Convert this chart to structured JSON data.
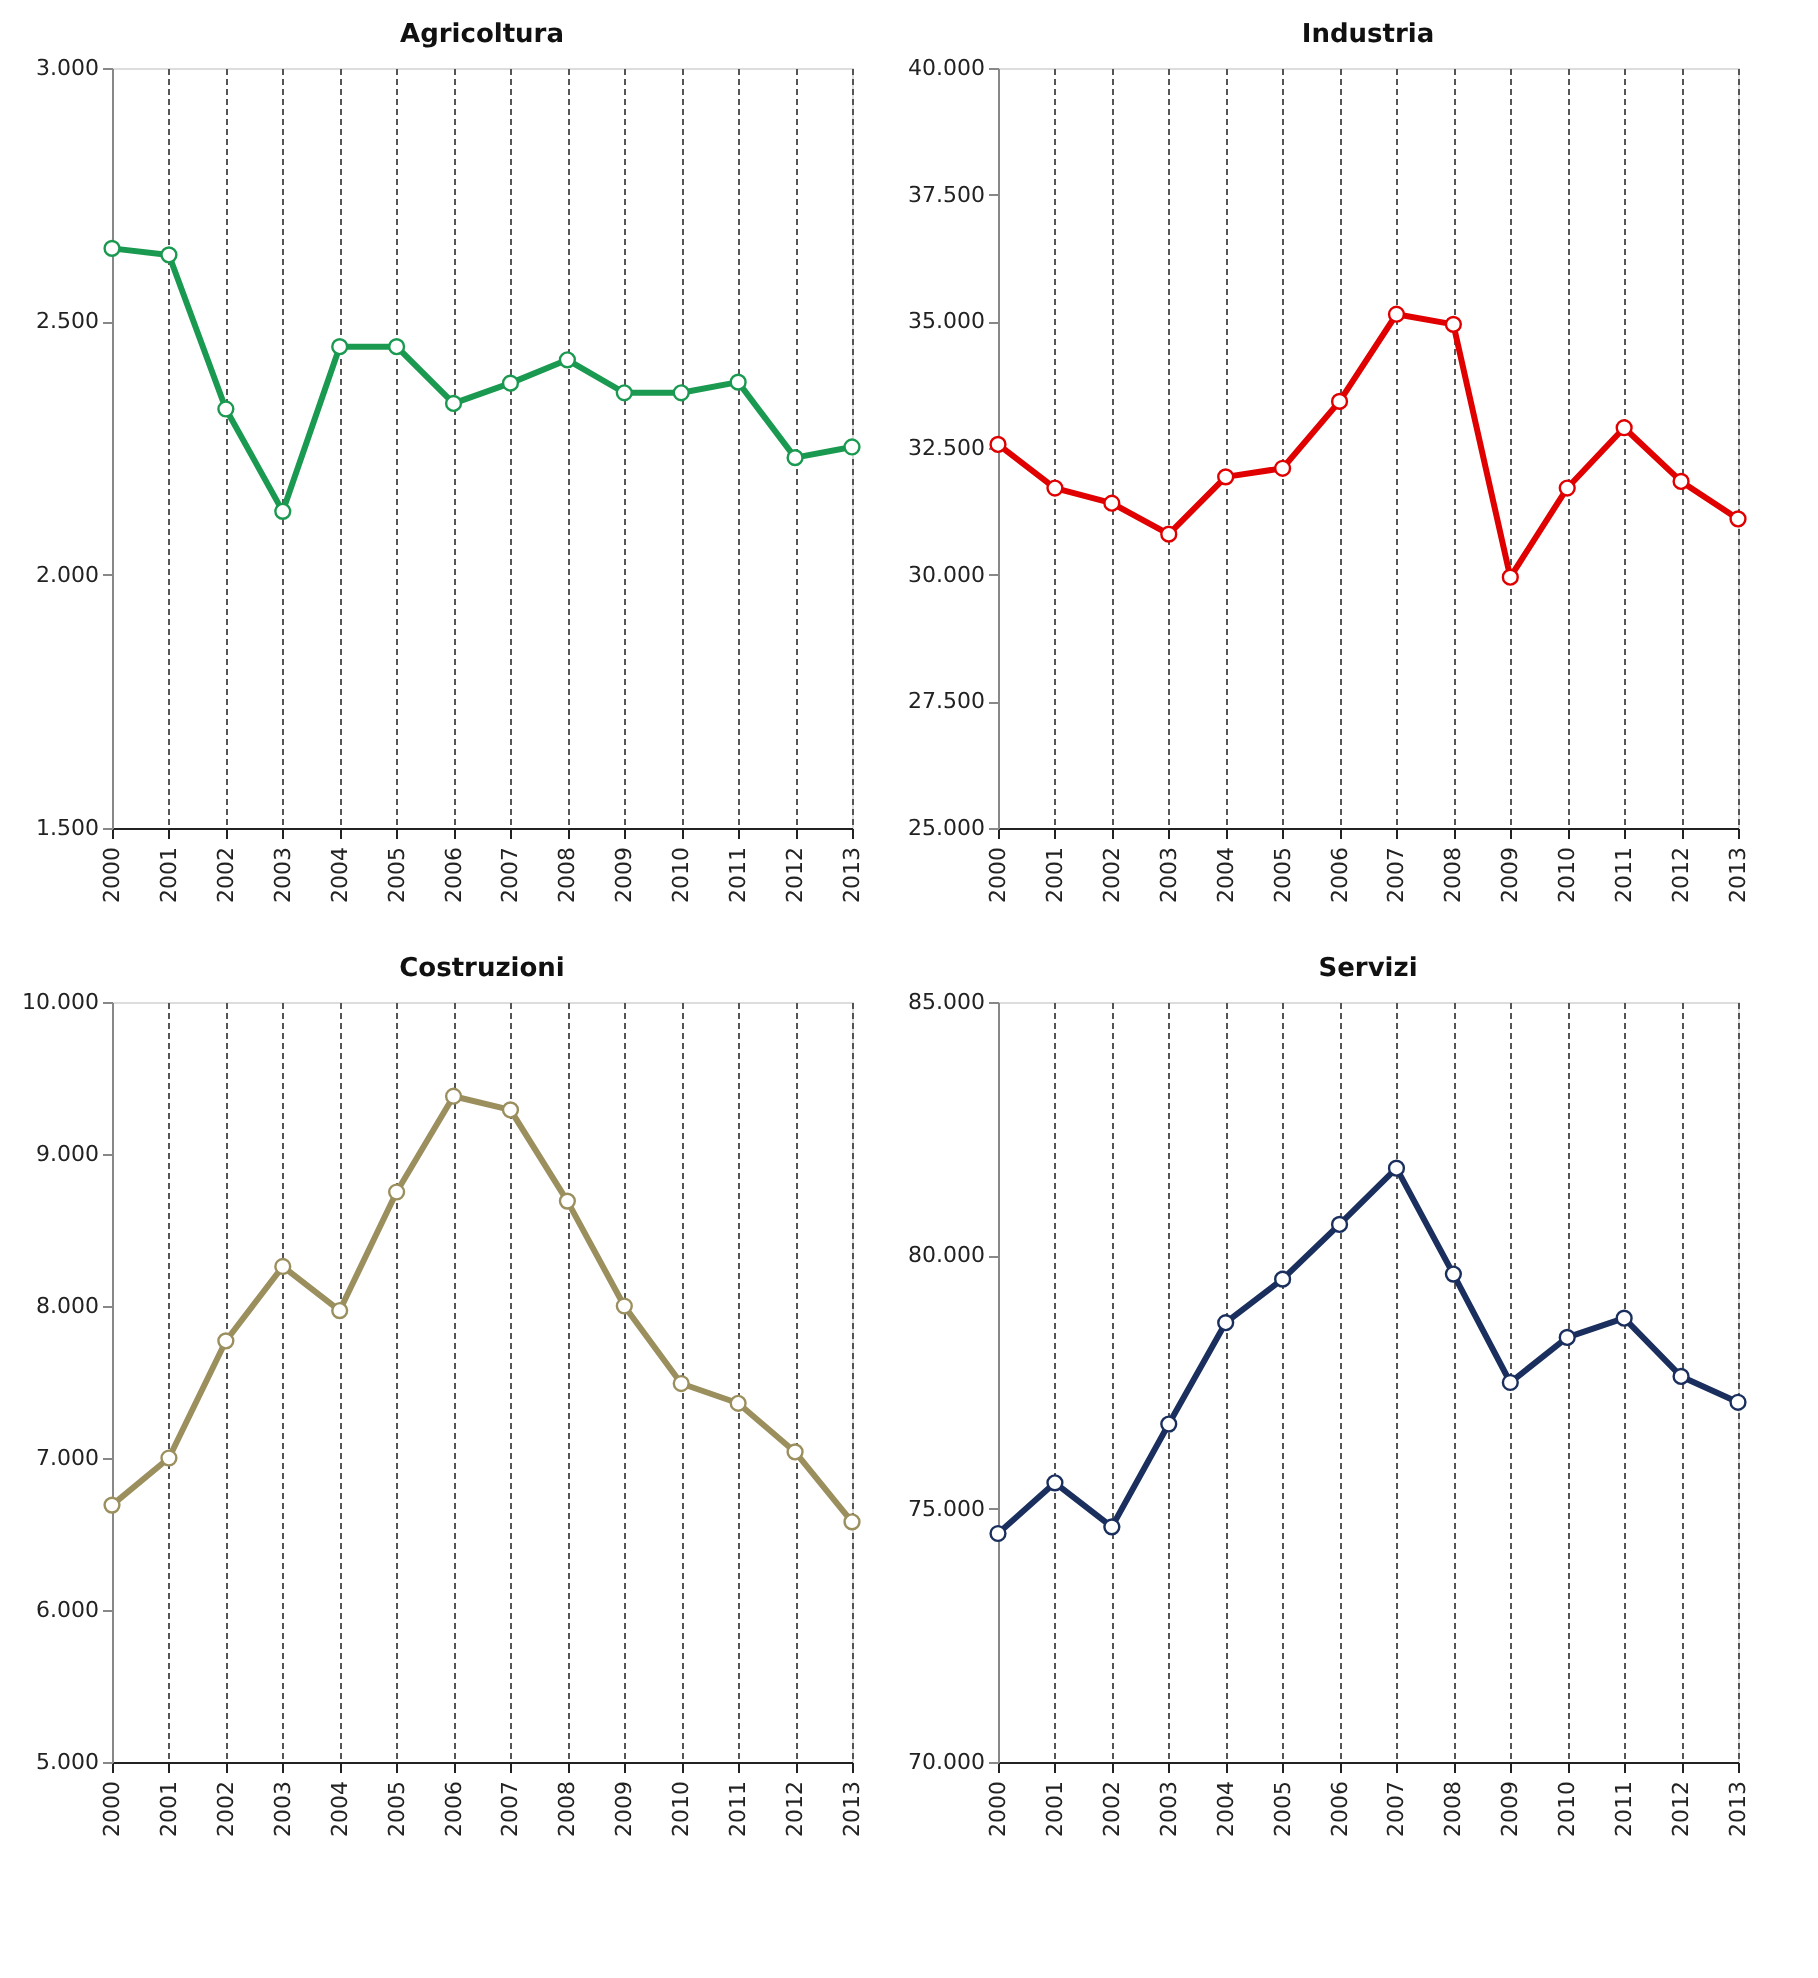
{
  "chart_data": [
    {
      "type": "line",
      "title": "Agricoltura",
      "categories": [
        "2000",
        "2001",
        "2002",
        "2003",
        "2004",
        "2005",
        "2006",
        "2007",
        "2008",
        "2009",
        "2010",
        "2011",
        "2012",
        "2013"
      ],
      "series": [
        {
          "color": "#1a9a50",
          "values": [
            2644,
            2631,
            2327,
            2125,
            2450,
            2450,
            2338,
            2378,
            2424,
            2359,
            2359,
            2380,
            2231,
            2252
          ]
        }
      ],
      "ylim": [
        1500,
        3000
      ],
      "yticks": [
        {
          "value": 1500,
          "label": "1.500"
        },
        {
          "value": 2000,
          "label": "2.000"
        },
        {
          "value": 2500,
          "label": "2.500"
        },
        {
          "value": 3000,
          "label": "3.000"
        }
      ],
      "grid": "x",
      "marker": "circle",
      "line_style": "solid"
    },
    {
      "type": "line",
      "title": "Industria",
      "categories": [
        "2000",
        "2001",
        "2002",
        "2003",
        "2004",
        "2005",
        "2006",
        "2007",
        "2008",
        "2009",
        "2010",
        "2011",
        "2012",
        "2013"
      ],
      "series": [
        {
          "color": "#e00000",
          "values": [
            32570,
            31710,
            31410,
            30800,
            31930,
            32100,
            33420,
            35140,
            34940,
            29950,
            31710,
            32900,
            31840,
            31100
          ]
        }
      ],
      "ylim": [
        25000,
        40000
      ],
      "yticks": [
        {
          "value": 25000,
          "label": "25.000"
        },
        {
          "value": 27500,
          "label": "27.500"
        },
        {
          "value": 30000,
          "label": "30.000"
        },
        {
          "value": 32500,
          "label": "32.500"
        },
        {
          "value": 35000,
          "label": "35.000"
        },
        {
          "value": 37500,
          "label": "37.500"
        },
        {
          "value": 40000,
          "label": "40.000"
        }
      ],
      "grid": "x",
      "marker": "circle",
      "line_style": "solid"
    },
    {
      "type": "line",
      "title": "Costruzioni",
      "categories": [
        "2000",
        "2001",
        "2002",
        "2003",
        "2004",
        "2005",
        "2006",
        "2007",
        "2008",
        "2009",
        "2010",
        "2011",
        "2012",
        "2013"
      ],
      "series": [
        {
          "color": "#9b8f5e",
          "values": [
            6690,
            7000,
            7770,
            8260,
            7970,
            8750,
            9380,
            9290,
            8690,
            8000,
            7490,
            7360,
            7040,
            6580
          ]
        }
      ],
      "ylim": [
        5000,
        10000
      ],
      "yticks": [
        {
          "value": 5000,
          "label": "5.000"
        },
        {
          "value": 6000,
          "label": "6.000"
        },
        {
          "value": 7000,
          "label": "7.000"
        },
        {
          "value": 8000,
          "label": "8.000"
        },
        {
          "value": 9000,
          "label": "9.000"
        },
        {
          "value": 10000,
          "label": "10.000"
        }
      ],
      "grid": "x",
      "marker": "circle",
      "line_style": "solid"
    },
    {
      "type": "line",
      "title": "Servizi",
      "categories": [
        "2000",
        "2001",
        "2002",
        "2003",
        "2004",
        "2005",
        "2006",
        "2007",
        "2008",
        "2009",
        "2010",
        "2011",
        "2012",
        "2013"
      ],
      "series": [
        {
          "color": "#1a2f5e",
          "values": [
            74510,
            75510,
            74640,
            76670,
            78670,
            79530,
            80610,
            81720,
            79630,
            77490,
            78380,
            78760,
            77610,
            77100
          ]
        }
      ],
      "ylim": [
        70000,
        85000
      ],
      "yticks": [
        {
          "value": 70000,
          "label": "70.000"
        },
        {
          "value": 75000,
          "label": "75.000"
        },
        {
          "value": 80000,
          "label": "80.000"
        },
        {
          "value": 85000,
          "label": "85.000"
        }
      ],
      "grid": "x",
      "marker": "circle",
      "line_style": "solid"
    }
  ]
}
